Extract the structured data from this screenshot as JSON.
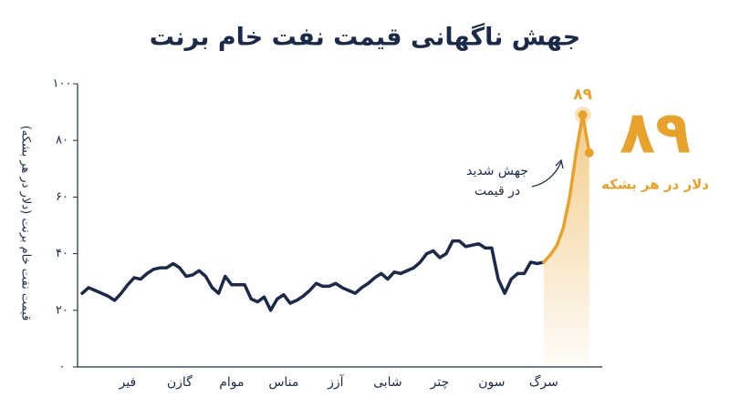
{
  "chart_data": {
    "type": "line",
    "title": "جهش ناگهانی قیمت نفت خام برنت",
    "y_label": "قیمت نفت خام برنت (دلار در هر بشکه)",
    "categories": [
      null,
      null,
      null,
      null,
      null,
      null,
      null,
      "فیر",
      null,
      null,
      null,
      null,
      null,
      null,
      null,
      "گازن",
      null,
      null,
      null,
      null,
      null,
      null,
      null,
      "موام",
      null,
      null,
      null,
      null,
      null,
      null,
      null,
      "مناس",
      null,
      null,
      null,
      null,
      null,
      null,
      null,
      "آزز",
      null,
      null,
      null,
      null,
      null,
      null,
      null,
      "شابی",
      null,
      null,
      null,
      null,
      null,
      null,
      null,
      "چتر",
      null,
      null,
      null,
      null,
      null,
      null,
      null,
      "سون",
      null,
      null,
      null,
      null,
      null,
      null,
      null,
      "سرگ",
      null,
      null,
      null,
      null,
      null,
      null,
      null
    ],
    "series": [
      {
        "color": "#1b2a4a",
        "values": [
          26,
          28,
          27,
          26,
          25,
          23.5,
          26,
          29,
          31.5,
          31,
          33,
          34.5,
          35,
          35,
          36.5,
          35,
          32,
          32.5,
          34,
          32,
          28,
          26,
          32,
          29,
          29,
          29,
          24,
          23,
          24.7,
          20,
          24,
          25.5,
          22.5,
          23.5,
          25,
          27,
          29.5,
          28.5,
          28.5,
          29.5,
          28,
          27,
          26,
          28,
          29.5,
          31.5,
          33,
          31,
          33.5,
          33,
          34,
          35,
          37,
          40,
          41,
          38.6,
          40,
          44.5,
          44.5,
          42.5,
          43,
          43.5,
          42,
          42,
          31,
          26,
          31,
          33,
          33,
          37,
          36.5,
          37,
          null,
          null,
          null,
          null,
          null,
          null,
          null
        ]
      },
      {
        "color": "#e8a22c",
        "values": [
          null,
          null,
          null,
          null,
          null,
          null,
          null,
          null,
          null,
          null,
          null,
          null,
          null,
          null,
          null,
          null,
          null,
          null,
          null,
          null,
          null,
          null,
          null,
          null,
          null,
          null,
          null,
          null,
          null,
          null,
          null,
          null,
          null,
          null,
          null,
          null,
          null,
          null,
          null,
          null,
          null,
          null,
          null,
          null,
          null,
          null,
          null,
          null,
          null,
          null,
          null,
          null,
          null,
          null,
          null,
          null,
          null,
          null,
          null,
          null,
          null,
          null,
          null,
          null,
          null,
          null,
          null,
          null,
          null,
          null,
          null,
          37,
          39.5,
          42.8,
          49,
          60,
          76,
          89,
          75.6
        ],
        "value_labels": [
          null,
          null,
          null,
          null,
          null,
          null,
          null,
          null,
          null,
          null,
          null,
          null,
          null,
          null,
          null,
          null,
          null,
          null,
          null,
          null,
          null,
          null,
          null,
          null,
          null,
          null,
          null,
          null,
          null,
          null,
          null,
          null,
          null,
          null,
          null,
          null,
          null,
          null,
          null,
          null,
          null,
          null,
          null,
          null,
          null,
          null,
          null,
          null,
          null,
          null,
          null,
          null,
          null,
          null,
          null,
          null,
          null,
          null,
          null,
          null,
          null,
          null,
          null,
          null,
          null,
          null,
          null,
          null,
          null,
          null,
          null,
          null,
          null,
          null,
          null,
          null,
          null,
          "۸۹",
          null
        ]
      }
    ],
    "ylim": [
      0,
      100
    ],
    "yticks": [
      {
        "value": 0,
        "label": "۰"
      },
      {
        "value": 20,
        "label": "۲۰"
      },
      {
        "value": 40,
        "label": "۴۰"
      },
      {
        "value": 60,
        "label": "۶۰"
      },
      {
        "value": 80,
        "label": "۸۰"
      },
      {
        "value": 100,
        "label": "۱۰۰"
      }
    ],
    "annotation": [
      "جهش شدید",
      "در قیمت"
    ],
    "callout": {
      "value": 89,
      "label": "۸۹",
      "unit": "دلار در هر بشکه"
    }
  }
}
